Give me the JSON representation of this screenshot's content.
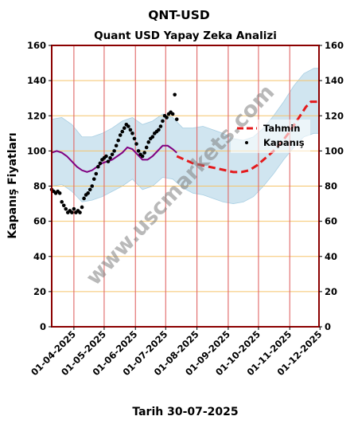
{
  "chart_data": {
    "type": "line",
    "title": "QNT-USD",
    "subtitle": "Quant USD Yapay Zeka Analizi",
    "ylabel": "Kapanış Fiyatları",
    "xlabel": "Tarih 30-07-2025",
    "watermark": "www.uscmarkets.com",
    "ylim": [
      0,
      160
    ],
    "yticks": [
      0,
      20,
      40,
      60,
      80,
      100,
      120,
      140,
      160
    ],
    "xlim": [
      "2025-03-10",
      "2025-11-30"
    ],
    "xticks": [
      "01-04-2025",
      "01-05-2025",
      "01-06-2025",
      "01-07-2025",
      "01-08-2025",
      "01-09-2025",
      "01-10-2025",
      "01-11-2025",
      "01-12-2025"
    ],
    "grid": true,
    "legend_position": "right",
    "colors": {
      "forecast": "#e41a1c",
      "close": "#000000",
      "moving_average": "#800080",
      "band": "#a9cfe3",
      "hgrid": "#f5c46b",
      "vgrid": "#e06666",
      "frame": "#8b0000"
    },
    "series": [
      {
        "name": "Kapanış",
        "kind": "scatter",
        "points": [
          [
            "2025-03-10",
            78
          ],
          [
            "2025-03-12",
            77
          ],
          [
            "2025-03-14",
            76
          ],
          [
            "2025-03-16",
            77
          ],
          [
            "2025-03-18",
            76
          ],
          [
            "2025-03-20",
            71
          ],
          [
            "2025-03-22",
            69
          ],
          [
            "2025-03-24",
            67
          ],
          [
            "2025-03-26",
            65
          ],
          [
            "2025-03-28",
            66
          ],
          [
            "2025-03-30",
            65
          ],
          [
            "2025-04-01",
            67
          ],
          [
            "2025-04-03",
            65
          ],
          [
            "2025-04-05",
            66
          ],
          [
            "2025-04-07",
            65
          ],
          [
            "2025-04-09",
            68
          ],
          [
            "2025-04-11",
            73
          ],
          [
            "2025-04-13",
            75
          ],
          [
            "2025-04-15",
            76
          ],
          [
            "2025-04-17",
            78
          ],
          [
            "2025-04-19",
            80
          ],
          [
            "2025-04-21",
            84
          ],
          [
            "2025-04-23",
            87
          ],
          [
            "2025-04-25",
            91
          ],
          [
            "2025-04-27",
            93
          ],
          [
            "2025-04-29",
            95
          ],
          [
            "2025-05-01",
            96
          ],
          [
            "2025-05-03",
            97
          ],
          [
            "2025-05-05",
            94
          ],
          [
            "2025-05-07",
            96
          ],
          [
            "2025-05-09",
            98
          ],
          [
            "2025-05-11",
            100
          ],
          [
            "2025-05-13",
            103
          ],
          [
            "2025-05-15",
            106
          ],
          [
            "2025-05-17",
            109
          ],
          [
            "2025-05-19",
            111
          ],
          [
            "2025-05-21",
            113
          ],
          [
            "2025-05-23",
            115
          ],
          [
            "2025-05-25",
            114
          ],
          [
            "2025-05-27",
            112
          ],
          [
            "2025-05-29",
            110
          ],
          [
            "2025-05-31",
            107
          ],
          [
            "2025-06-02",
            104
          ],
          [
            "2025-06-04",
            100
          ],
          [
            "2025-06-06",
            98
          ],
          [
            "2025-06-08",
            97
          ],
          [
            "2025-06-10",
            99
          ],
          [
            "2025-06-12",
            102
          ],
          [
            "2025-06-14",
            105
          ],
          [
            "2025-06-16",
            107
          ],
          [
            "2025-06-18",
            108
          ],
          [
            "2025-06-20",
            110
          ],
          [
            "2025-06-22",
            111
          ],
          [
            "2025-06-24",
            112
          ],
          [
            "2025-06-26",
            114
          ],
          [
            "2025-06-28",
            117
          ],
          [
            "2025-06-30",
            120
          ],
          [
            "2025-07-02",
            119
          ],
          [
            "2025-07-04",
            121
          ],
          [
            "2025-07-06",
            122
          ],
          [
            "2025-07-08",
            121
          ],
          [
            "2025-07-10",
            132
          ],
          [
            "2025-07-12",
            118
          ]
        ]
      },
      {
        "name": "Tahmin",
        "kind": "line-dashed",
        "points": [
          [
            "2025-07-12",
            97
          ],
          [
            "2025-07-20",
            95
          ],
          [
            "2025-07-28",
            93
          ],
          [
            "2025-08-05",
            92
          ],
          [
            "2025-08-13",
            91
          ],
          [
            "2025-08-21",
            90
          ],
          [
            "2025-08-29",
            89
          ],
          [
            "2025-09-06",
            88
          ],
          [
            "2025-09-14",
            88
          ],
          [
            "2025-09-22",
            89
          ],
          [
            "2025-09-30",
            92
          ],
          [
            "2025-10-08",
            96
          ],
          [
            "2025-10-16",
            100
          ],
          [
            "2025-10-24",
            105
          ],
          [
            "2025-11-01",
            111
          ],
          [
            "2025-11-09",
            118
          ],
          [
            "2025-11-17",
            125
          ],
          [
            "2025-11-22",
            128
          ],
          [
            "2025-11-30",
            128
          ]
        ]
      },
      {
        "kind": "line",
        "points": [
          [
            "2025-03-10",
            99
          ],
          [
            "2025-03-15",
            100
          ],
          [
            "2025-03-20",
            99
          ],
          [
            "2025-03-25",
            97
          ],
          [
            "2025-03-30",
            94
          ],
          [
            "2025-04-04",
            91
          ],
          [
            "2025-04-09",
            89
          ],
          [
            "2025-04-14",
            88
          ],
          [
            "2025-04-19",
            89
          ],
          [
            "2025-04-24",
            91
          ],
          [
            "2025-04-29",
            93
          ],
          [
            "2025-05-04",
            94
          ],
          [
            "2025-05-09",
            95
          ],
          [
            "2025-05-14",
            97
          ],
          [
            "2025-05-19",
            99
          ],
          [
            "2025-05-24",
            102
          ],
          [
            "2025-05-29",
            101
          ],
          [
            "2025-06-03",
            98
          ],
          [
            "2025-06-08",
            95
          ],
          [
            "2025-06-13",
            95
          ],
          [
            "2025-06-18",
            97
          ],
          [
            "2025-06-23",
            100
          ],
          [
            "2025-06-28",
            103
          ],
          [
            "2025-07-03",
            103
          ],
          [
            "2025-07-08",
            101
          ],
          [
            "2025-07-12",
            99
          ]
        ]
      },
      {
        "kind": "band",
        "upper": [
          [
            "2025-03-10",
            118
          ],
          [
            "2025-03-20",
            119
          ],
          [
            "2025-03-30",
            115
          ],
          [
            "2025-04-09",
            108
          ],
          [
            "2025-04-19",
            108
          ],
          [
            "2025-04-29",
            110
          ],
          [
            "2025-05-09",
            113
          ],
          [
            "2025-05-19",
            117
          ],
          [
            "2025-05-29",
            119
          ],
          [
            "2025-06-08",
            115
          ],
          [
            "2025-06-18",
            117
          ],
          [
            "2025-06-28",
            121
          ],
          [
            "2025-07-08",
            119
          ],
          [
            "2025-07-18",
            113
          ],
          [
            "2025-07-28",
            113
          ],
          [
            "2025-08-07",
            114
          ],
          [
            "2025-08-17",
            112
          ],
          [
            "2025-08-27",
            110
          ],
          [
            "2025-09-06",
            107
          ],
          [
            "2025-09-16",
            106
          ],
          [
            "2025-09-26",
            108
          ],
          [
            "2025-10-06",
            113
          ],
          [
            "2025-10-16",
            120
          ],
          [
            "2025-10-26",
            128
          ],
          [
            "2025-11-05",
            137
          ],
          [
            "2025-11-15",
            144
          ],
          [
            "2025-11-25",
            147
          ],
          [
            "2025-11-30",
            147
          ]
        ],
        "lower": [
          [
            "2025-03-10",
            80
          ],
          [
            "2025-03-20",
            81
          ],
          [
            "2025-03-30",
            77
          ],
          [
            "2025-04-09",
            71
          ],
          [
            "2025-04-19",
            72
          ],
          [
            "2025-04-29",
            74
          ],
          [
            "2025-05-09",
            77
          ],
          [
            "2025-05-19",
            80
          ],
          [
            "2025-05-29",
            84
          ],
          [
            "2025-06-08",
            78
          ],
          [
            "2025-06-18",
            80
          ],
          [
            "2025-06-28",
            85
          ],
          [
            "2025-07-08",
            84
          ],
          [
            "2025-07-18",
            79
          ],
          [
            "2025-07-28",
            76
          ],
          [
            "2025-08-07",
            75
          ],
          [
            "2025-08-17",
            73
          ],
          [
            "2025-08-27",
            71
          ],
          [
            "2025-09-06",
            70
          ],
          [
            "2025-09-16",
            71
          ],
          [
            "2025-09-26",
            74
          ],
          [
            "2025-10-06",
            80
          ],
          [
            "2025-10-16",
            87
          ],
          [
            "2025-10-26",
            95
          ],
          [
            "2025-11-05",
            102
          ],
          [
            "2025-11-15",
            108
          ],
          [
            "2025-11-25",
            110
          ],
          [
            "2025-11-30",
            110
          ]
        ]
      }
    ]
  }
}
